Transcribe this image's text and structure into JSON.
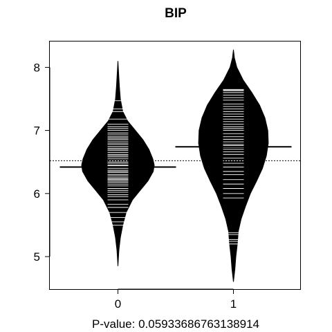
{
  "chart_data": {
    "type": "beanplot",
    "title": "BIP",
    "xlabel": "P-value: 0.05933686763138914",
    "ylabel": "",
    "ylim": [
      4.5,
      8.4
    ],
    "yticks": [
      5,
      6,
      7,
      8
    ],
    "categories": [
      "0",
      "1"
    ],
    "overall_mean": 6.52,
    "grid": false,
    "legend": "none",
    "fill_color": "#000000",
    "line_color": "#ffffff",
    "series": [
      {
        "category": "0",
        "mean": 6.42,
        "range": [
          4.85,
          8.1
        ],
        "density": [
          [
            4.85,
            0.0
          ],
          [
            5.1,
            0.02
          ],
          [
            5.3,
            0.05
          ],
          [
            5.5,
            0.1
          ],
          [
            5.7,
            0.17
          ],
          [
            5.9,
            0.3
          ],
          [
            6.05,
            0.46
          ],
          [
            6.2,
            0.62
          ],
          [
            6.35,
            0.73
          ],
          [
            6.45,
            0.75
          ],
          [
            6.55,
            0.72
          ],
          [
            6.7,
            0.64
          ],
          [
            6.85,
            0.52
          ],
          [
            7.0,
            0.36
          ],
          [
            7.15,
            0.2
          ],
          [
            7.3,
            0.1
          ],
          [
            7.5,
            0.05
          ],
          [
            7.7,
            0.03
          ],
          [
            7.9,
            0.015
          ],
          [
            8.1,
            0.0
          ]
        ],
        "observations": [
          5.5,
          5.55,
          5.62,
          5.7,
          5.78,
          5.83,
          5.9,
          5.95,
          5.98,
          6.02,
          6.05,
          6.08,
          6.12,
          6.15,
          6.18,
          6.2,
          6.22,
          6.23,
          6.25,
          6.28,
          6.3,
          6.33,
          6.35,
          6.37,
          6.4,
          6.42,
          6.44,
          6.45,
          6.48,
          6.5,
          6.52,
          6.55,
          6.58,
          6.6,
          6.62,
          6.65,
          6.68,
          6.7,
          6.72,
          6.75,
          6.78,
          6.8,
          6.83,
          6.86,
          6.88,
          6.9,
          6.93,
          6.96,
          7.0,
          7.03,
          7.06,
          7.1,
          7.18,
          7.3,
          7.34,
          7.47
        ]
      },
      {
        "category": "1",
        "mean": 6.74,
        "range": [
          4.6,
          8.28
        ],
        "density": [
          [
            4.6,
            0.0
          ],
          [
            4.8,
            0.03
          ],
          [
            5.0,
            0.05
          ],
          [
            5.2,
            0.08
          ],
          [
            5.4,
            0.1
          ],
          [
            5.6,
            0.16
          ],
          [
            5.8,
            0.25
          ],
          [
            6.0,
            0.35
          ],
          [
            6.2,
            0.48
          ],
          [
            6.4,
            0.6
          ],
          [
            6.6,
            0.68
          ],
          [
            6.8,
            0.72
          ],
          [
            7.0,
            0.71
          ],
          [
            7.2,
            0.65
          ],
          [
            7.4,
            0.54
          ],
          [
            7.6,
            0.38
          ],
          [
            7.8,
            0.2
          ],
          [
            8.0,
            0.07
          ],
          [
            8.15,
            0.02
          ],
          [
            8.28,
            0.0
          ]
        ],
        "observations": [
          5.2,
          5.24,
          5.27,
          5.35,
          5.38,
          5.93,
          6.0,
          6.08,
          6.15,
          6.22,
          6.3,
          6.35,
          6.42,
          6.48,
          6.52,
          6.56,
          6.62,
          6.66,
          6.7,
          6.73,
          6.76,
          6.78,
          6.82,
          6.86,
          6.9,
          6.95,
          7.0,
          7.03,
          7.06,
          7.1,
          7.14,
          7.18,
          7.22,
          7.26,
          7.3,
          7.34,
          7.38,
          7.42,
          7.48,
          7.52,
          7.56,
          7.6,
          7.63,
          7.64,
          7.65
        ]
      }
    ]
  }
}
